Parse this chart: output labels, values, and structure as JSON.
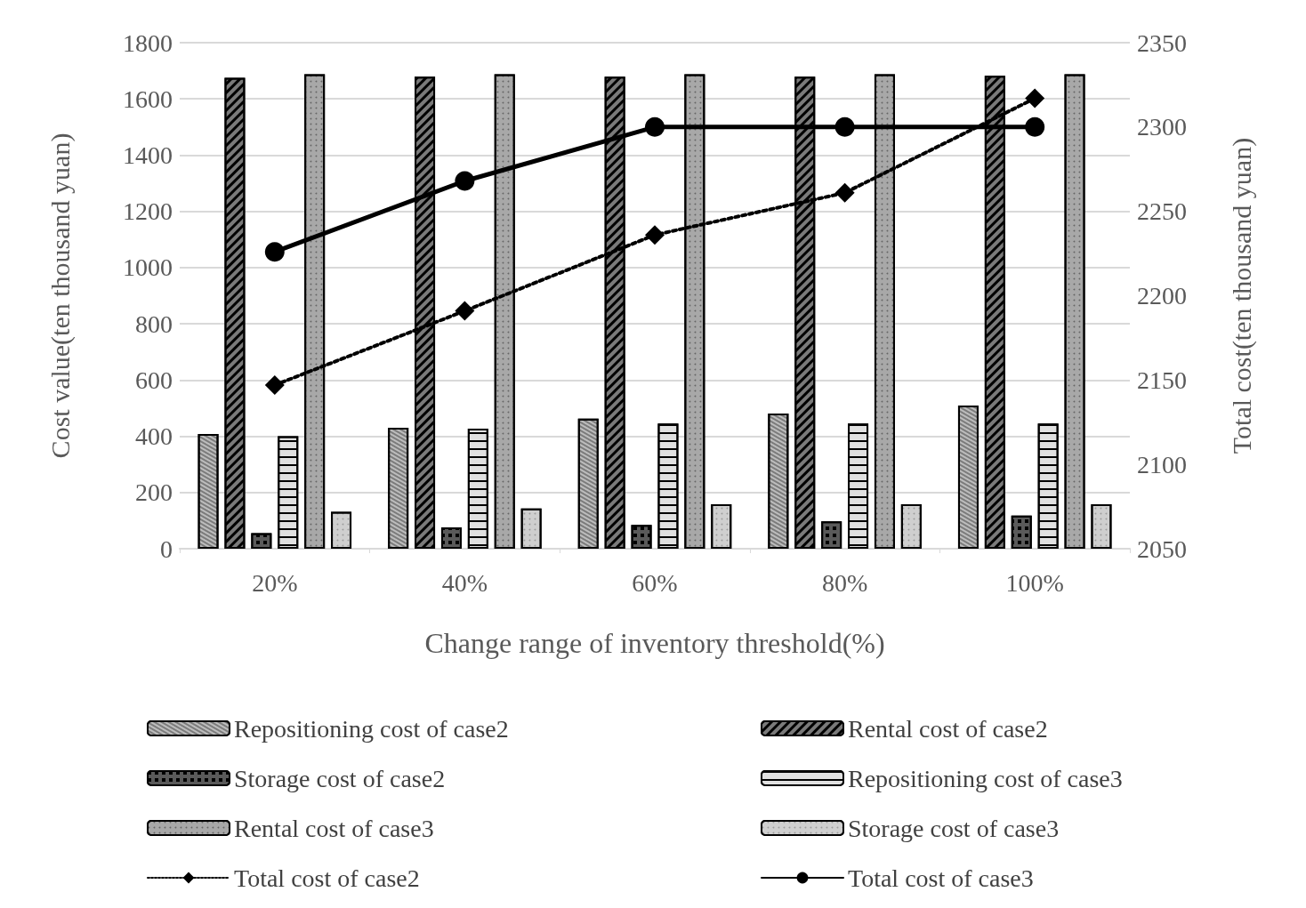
{
  "chart_data": {
    "type": "bar",
    "xlabel": "Change range of inventory threshold(%)",
    "ylabel": "Cost value(ten thousand yuan)",
    "y2label": "Total cost(ten thousand yuan)",
    "categories": [
      "20%",
      "40%",
      "60%",
      "80%",
      "100%"
    ],
    "series": [
      {
        "name": "Repositioning cost of case2",
        "color": "#bdbdbd",
        "values": [
          408,
          430,
          463,
          481,
          509
        ]
      },
      {
        "name": "Rental cost of case2",
        "color": "#7a7a7a",
        "values": [
          1675,
          1679,
          1679,
          1679,
          1682
        ]
      },
      {
        "name": "Storage cost of case2",
        "color": "#5a5a5a",
        "values": [
          55,
          76,
          85,
          97,
          118
        ]
      },
      {
        "name": "Repositioning cost of case3",
        "color": "#e0e0e0",
        "values": [
          400,
          427,
          445,
          445,
          445
        ]
      },
      {
        "name": "Rental cost of case3",
        "color": "#a8a8a8",
        "values": [
          1688,
          1688,
          1688,
          1688,
          1688
        ]
      },
      {
        "name": "Storage cost of case3",
        "color": "#cfcfcf",
        "values": [
          131,
          143,
          158,
          158,
          158
        ]
      },
      {
        "name": "Total cost of case2",
        "type": "line",
        "axis": "y2",
        "color": "#000000",
        "marker": "diamond",
        "line_style": "dotted",
        "values": [
          2147,
          2191,
          2236,
          2261,
          2317
        ]
      },
      {
        "name": "Total cost of case3",
        "type": "line",
        "axis": "y2",
        "color": "#000000",
        "marker": "circle",
        "line_style": "solid",
        "values": [
          2226,
          2268,
          2300,
          2300,
          2300
        ]
      }
    ],
    "ylim": [
      0,
      1800
    ],
    "yticks": [
      0,
      200,
      400,
      600,
      800,
      1000,
      1200,
      1400,
      1600,
      1800
    ],
    "y2lim": [
      2050,
      2350
    ],
    "y2ticks": [
      2050,
      2100,
      2150,
      2200,
      2250,
      2300,
      2350
    ],
    "grid": "y",
    "legend": "bottom"
  }
}
